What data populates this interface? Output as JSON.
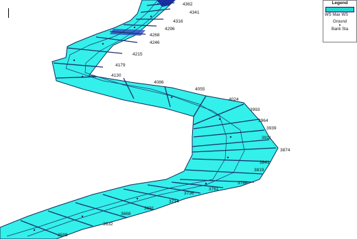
{
  "legend": {
    "title": "Legend",
    "ws_label": "WS Max WS",
    "ground_label": "Ground",
    "bank_marker": "•",
    "bank_label": "Bank Sta",
    "water_color": "#22d6cf"
  },
  "stations": [
    "4362",
    "4341",
    "4316",
    "4296",
    "4268",
    "4246",
    "4215",
    "4179",
    "4130",
    "4086",
    "4055",
    "4024",
    "3993",
    "3964",
    "3939",
    "3911",
    "3874",
    "3841",
    "3819",
    "3786",
    "3761",
    "3736",
    "3714",
    "3691",
    "3668",
    "3632",
    "3588"
  ],
  "colors": {
    "water": "#33f0ea",
    "outline": "#0d2a5a",
    "section": "#1a2f6a",
    "deep": "#1b2ea8"
  }
}
